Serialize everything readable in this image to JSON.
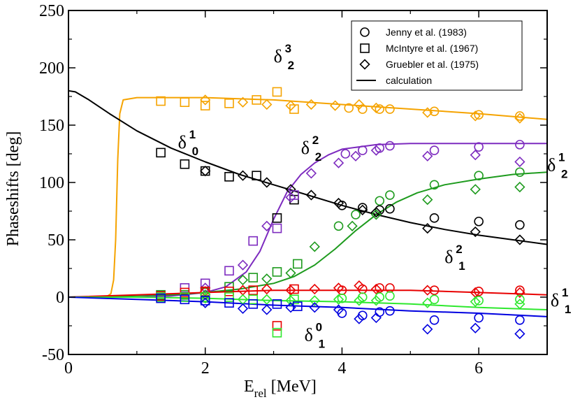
{
  "chart_data": {
    "type": "scatter",
    "title": "",
    "xlabel": "E",
    "xlabel_sub": "rel",
    "xlabel_unit": " [MeV]",
    "ylabel": "Phaseshifts [deg]",
    "xlim": [
      0,
      7
    ],
    "ylim": [
      -50,
      250
    ],
    "xticks": [
      0,
      2,
      4,
      6
    ],
    "yticks": [
      -50,
      0,
      50,
      100,
      150,
      200,
      250
    ],
    "legend": {
      "placement": "top-right",
      "entries": [
        {
          "label": "Jenny et al. (1983)",
          "marker": "circle"
        },
        {
          "label": "McIntyre et al. (1967)",
          "marker": "square"
        },
        {
          "label": "Gruebler et al. (1975)",
          "marker": "diamond"
        },
        {
          "label": "calculation",
          "marker": "line"
        }
      ]
    },
    "series": [
      {
        "name": "δ32",
        "main": "δ",
        "sup": "3",
        "sub": "2",
        "label_anchor": [
          3.0,
          205
        ],
        "color": "#f5a300",
        "curve": [
          [
            0,
            0
          ],
          [
            0.55,
            0
          ],
          [
            0.62,
            3
          ],
          [
            0.66,
            15
          ],
          [
            0.69,
            50
          ],
          [
            0.72,
            120
          ],
          [
            0.75,
            160
          ],
          [
            0.8,
            172
          ],
          [
            1.0,
            174
          ],
          [
            2.0,
            174
          ],
          [
            3.0,
            172
          ],
          [
            4.0,
            168
          ],
          [
            5.0,
            164
          ],
          [
            6.0,
            160
          ],
          [
            7.0,
            155
          ]
        ],
        "circles": [
          [
            4.1,
            165
          ],
          [
            4.3,
            164
          ],
          [
            4.55,
            164
          ],
          [
            4.7,
            164
          ],
          [
            5.35,
            162
          ],
          [
            6.0,
            159
          ],
          [
            6.6,
            158
          ]
        ],
        "squares": [
          [
            1.35,
            171
          ],
          [
            1.7,
            170
          ],
          [
            2.0,
            167
          ],
          [
            2.35,
            169
          ],
          [
            2.75,
            172
          ],
          [
            3.05,
            179
          ],
          [
            3.3,
            164
          ]
        ],
        "diamonds": [
          [
            2.0,
            172
          ],
          [
            2.55,
            170
          ],
          [
            2.9,
            168
          ],
          [
            3.25,
            167
          ],
          [
            3.55,
            168
          ],
          [
            3.9,
            167
          ],
          [
            4.25,
            168
          ],
          [
            4.5,
            165
          ],
          [
            5.25,
            161
          ],
          [
            5.95,
            158
          ],
          [
            6.6,
            156
          ]
        ]
      },
      {
        "name": "δ10",
        "main": "δ",
        "sup": "1",
        "sub": "0",
        "label_anchor": [
          1.6,
          130
        ],
        "color": "#000000",
        "curve": [
          [
            0,
            180
          ],
          [
            0.1,
            179
          ],
          [
            0.3,
            172
          ],
          [
            0.6,
            160
          ],
          [
            1.0,
            145
          ],
          [
            1.5,
            130
          ],
          [
            2.0,
            118
          ],
          [
            2.5,
            107
          ],
          [
            3.0,
            98
          ],
          [
            3.5,
            89
          ],
          [
            4.0,
            80
          ],
          [
            4.5,
            72
          ],
          [
            5.0,
            65
          ],
          [
            5.5,
            59
          ],
          [
            6.0,
            54
          ],
          [
            6.5,
            50
          ],
          [
            7.0,
            46
          ]
        ],
        "circles": [
          [
            4.0,
            80
          ],
          [
            4.3,
            78
          ],
          [
            4.55,
            76
          ],
          [
            4.7,
            77
          ],
          [
            5.35,
            69
          ],
          [
            6.0,
            66
          ],
          [
            6.6,
            63
          ]
        ],
        "squares": [
          [
            1.35,
            126
          ],
          [
            1.7,
            116
          ],
          [
            2.0,
            110
          ],
          [
            2.35,
            105
          ],
          [
            2.75,
            106
          ],
          [
            3.05,
            69
          ],
          [
            3.3,
            85
          ]
        ],
        "diamonds": [
          [
            2.0,
            110
          ],
          [
            2.55,
            106
          ],
          [
            2.9,
            100
          ],
          [
            3.25,
            94
          ],
          [
            3.55,
            89
          ],
          [
            3.95,
            82
          ],
          [
            4.3,
            76
          ],
          [
            4.5,
            74
          ],
          [
            5.25,
            60
          ],
          [
            5.95,
            57
          ],
          [
            6.6,
            50
          ]
        ]
      },
      {
        "name": "δ22",
        "main": "δ",
        "sup": "2",
        "sub": "2",
        "label_anchor": [
          3.4,
          125
        ],
        "color": "#7d2bbf",
        "curve": [
          [
            0,
            0
          ],
          [
            1.0,
            0
          ],
          [
            1.5,
            1
          ],
          [
            2.0,
            4
          ],
          [
            2.3,
            9
          ],
          [
            2.6,
            22
          ],
          [
            2.8,
            40
          ],
          [
            3.0,
            68
          ],
          [
            3.2,
            92
          ],
          [
            3.4,
            107
          ],
          [
            3.6,
            117
          ],
          [
            3.8,
            124
          ],
          [
            4.0,
            129
          ],
          [
            4.5,
            133
          ],
          [
            5.0,
            134
          ],
          [
            6.0,
            134
          ],
          [
            7.0,
            134
          ]
        ],
        "circles": [
          [
            4.05,
            125
          ],
          [
            4.3,
            128
          ],
          [
            4.55,
            130
          ],
          [
            4.7,
            132
          ],
          [
            5.35,
            128
          ],
          [
            6.0,
            131
          ],
          [
            6.6,
            133
          ]
        ],
        "squares": [
          [
            1.7,
            8
          ],
          [
            2.0,
            12
          ],
          [
            2.35,
            23
          ],
          [
            2.7,
            49
          ],
          [
            3.05,
            60
          ],
          [
            3.3,
            89
          ]
        ],
        "diamonds": [
          [
            2.0,
            8
          ],
          [
            2.55,
            28
          ],
          [
            2.9,
            62
          ],
          [
            3.25,
            87
          ],
          [
            3.55,
            108
          ],
          [
            3.95,
            117
          ],
          [
            4.2,
            123
          ],
          [
            4.5,
            128
          ],
          [
            5.25,
            123
          ],
          [
            5.95,
            124
          ],
          [
            6.6,
            118
          ]
        ]
      },
      {
        "name": "δ12",
        "main": "δ",
        "sup": "1",
        "sub": "2",
        "label_anchor": [
          7.0,
          110
        ],
        "color": "#1e9b1e",
        "curve": [
          [
            0,
            0
          ],
          [
            1.5,
            2
          ],
          [
            2.0,
            4
          ],
          [
            2.5,
            7
          ],
          [
            3.0,
            12
          ],
          [
            3.3,
            18
          ],
          [
            3.6,
            28
          ],
          [
            3.9,
            42
          ],
          [
            4.2,
            58
          ],
          [
            4.5,
            72
          ],
          [
            4.8,
            83
          ],
          [
            5.1,
            91
          ],
          [
            5.5,
            98
          ],
          [
            6.0,
            103
          ],
          [
            6.5,
            107
          ],
          [
            7.0,
            109
          ]
        ],
        "circles": [
          [
            3.95,
            62
          ],
          [
            4.2,
            72
          ],
          [
            4.55,
            84
          ],
          [
            4.7,
            89
          ],
          [
            5.35,
            98
          ],
          [
            6.0,
            106
          ],
          [
            6.6,
            109
          ]
        ],
        "squares": [
          [
            1.35,
            2
          ],
          [
            1.7,
            2
          ],
          [
            2.0,
            4
          ],
          [
            2.35,
            9
          ],
          [
            2.7,
            17
          ],
          [
            3.05,
            22
          ],
          [
            3.35,
            29
          ]
        ],
        "diamonds": [
          [
            2.0,
            2
          ],
          [
            2.55,
            15
          ],
          [
            2.9,
            16
          ],
          [
            3.25,
            21
          ],
          [
            3.6,
            44
          ],
          [
            4.15,
            62
          ],
          [
            4.5,
            72
          ],
          [
            5.25,
            85
          ],
          [
            5.95,
            94
          ],
          [
            6.6,
            96
          ]
        ]
      },
      {
        "name": "δ21",
        "main": "δ",
        "sup": "2",
        "sub": "1",
        "label_anchor": [
          5.5,
          30
        ],
        "color": "#e80000",
        "curve": [
          [
            0,
            0
          ],
          [
            1.0,
            2
          ],
          [
            2.0,
            4
          ],
          [
            3.0,
            6
          ],
          [
            4.0,
            6
          ],
          [
            5.0,
            6
          ],
          [
            6.0,
            4
          ],
          [
            7.0,
            2
          ]
        ],
        "circles": [
          [
            4.0,
            6
          ],
          [
            4.3,
            7
          ],
          [
            4.55,
            8
          ],
          [
            4.7,
            8
          ],
          [
            5.35,
            6
          ],
          [
            6.0,
            5
          ],
          [
            6.6,
            6
          ]
        ],
        "squares": [
          [
            1.35,
            1
          ],
          [
            1.7,
            4
          ],
          [
            2.0,
            5
          ],
          [
            2.35,
            5
          ],
          [
            2.7,
            6
          ],
          [
            3.05,
            -25
          ],
          [
            3.3,
            7
          ]
        ],
        "diamonds": [
          [
            2.0,
            5
          ],
          [
            2.55,
            6
          ],
          [
            2.9,
            7
          ],
          [
            3.25,
            6
          ],
          [
            3.6,
            7
          ],
          [
            3.95,
            8
          ],
          [
            4.25,
            10
          ],
          [
            4.5,
            7
          ],
          [
            5.25,
            6
          ],
          [
            5.95,
            4
          ],
          [
            6.6,
            4
          ]
        ]
      },
      {
        "name": "δ11",
        "main": "δ",
        "sup": "1",
        "sub": "1",
        "label_anchor": [
          7.05,
          -8
        ],
        "color": "#2ee82e",
        "curve": [
          [
            0,
            0
          ],
          [
            1.0,
            0
          ],
          [
            2.0,
            -1
          ],
          [
            3.0,
            -3
          ],
          [
            4.0,
            -4
          ],
          [
            5.0,
            -6
          ],
          [
            6.0,
            -9
          ],
          [
            7.0,
            -11
          ]
        ],
        "circles": [
          [
            4.0,
            -1
          ],
          [
            4.3,
            0
          ],
          [
            4.55,
            0
          ],
          [
            4.7,
            1
          ],
          [
            5.35,
            -2
          ],
          [
            6.0,
            -3
          ],
          [
            6.6,
            -2
          ]
        ],
        "squares": [
          [
            1.35,
            0
          ],
          [
            1.7,
            0
          ],
          [
            2.0,
            0
          ],
          [
            2.35,
            0
          ],
          [
            2.7,
            -2
          ],
          [
            3.05,
            -31
          ],
          [
            3.3,
            -2
          ]
        ],
        "diamonds": [
          [
            2.0,
            -1
          ],
          [
            2.55,
            -2
          ],
          [
            2.9,
            -2
          ],
          [
            3.25,
            -3
          ],
          [
            3.6,
            -3
          ],
          [
            3.95,
            -2
          ],
          [
            4.25,
            -3
          ],
          [
            4.5,
            -3
          ],
          [
            5.25,
            -5
          ],
          [
            5.95,
            -4
          ],
          [
            6.6,
            -6
          ]
        ]
      },
      {
        "name": "δ01",
        "main": "δ",
        "sup": "0",
        "sub": "1",
        "label_anchor": [
          3.45,
          -38
        ],
        "color": "#0000e0",
        "curve": [
          [
            0,
            0
          ],
          [
            1.0,
            -2
          ],
          [
            2.0,
            -4
          ],
          [
            3.0,
            -7
          ],
          [
            4.0,
            -9
          ],
          [
            5.0,
            -12
          ],
          [
            6.0,
            -14
          ],
          [
            7.0,
            -17
          ]
        ],
        "circles": [
          [
            4.0,
            -14
          ],
          [
            4.3,
            -16
          ],
          [
            4.55,
            -13
          ],
          [
            4.7,
            -12
          ],
          [
            5.35,
            -20
          ],
          [
            6.0,
            -18
          ],
          [
            6.6,
            -20
          ]
        ],
        "squares": [
          [
            1.35,
            -1
          ],
          [
            1.7,
            -2
          ],
          [
            2.0,
            -3
          ],
          [
            2.35,
            -5
          ],
          [
            2.7,
            -6
          ],
          [
            3.05,
            -6
          ],
          [
            3.35,
            -8
          ]
        ],
        "diamonds": [
          [
            2.0,
            -5
          ],
          [
            2.55,
            -10
          ],
          [
            2.9,
            -11
          ],
          [
            3.25,
            -9
          ],
          [
            3.6,
            -9
          ],
          [
            3.95,
            -11
          ],
          [
            4.25,
            -19
          ],
          [
            4.5,
            -18
          ],
          [
            5.25,
            -28
          ],
          [
            5.95,
            -27
          ],
          [
            6.6,
            -32
          ]
        ]
      }
    ]
  }
}
